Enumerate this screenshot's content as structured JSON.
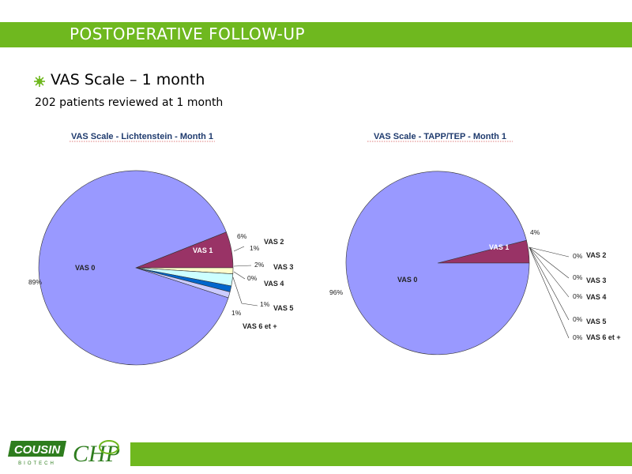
{
  "header": {
    "title": "POSTOPERATIVE FOLLOW-UP"
  },
  "bullet": {
    "text": "VAS Scale – 1 month",
    "icon": "star-burst-icon"
  },
  "subtitle": "202 patients reviewed at 1 month",
  "colors": {
    "accent": "#6fb81f",
    "vas0": "#9999ff",
    "vas1": "#993366",
    "vas2": "#ffffcc",
    "vas3": "#ccffff",
    "vas4": "#ff8080",
    "vas5": "#0066cc",
    "vas6": "#ccccff"
  },
  "chart_data": [
    {
      "type": "pie",
      "title": "VAS Scale - Lichtenstein - Month 1",
      "labels": [
        "VAS 0",
        "VAS 1",
        "VAS 2",
        "VAS 3",
        "VAS 4",
        "VAS 5",
        "VAS 6 et +"
      ],
      "values": [
        89,
        6,
        1,
        2,
        0,
        1,
        1
      ],
      "value_labels": [
        "89%",
        "6%",
        "1%",
        "2%",
        "0%",
        "1%",
        "1%"
      ]
    },
    {
      "type": "pie",
      "title": "VAS Scale - TAPP/TEP - Month 1",
      "labels": [
        "VAS 0",
        "VAS 1",
        "VAS 2",
        "VAS 3",
        "VAS 4",
        "VAS 5",
        "VAS 6 et +"
      ],
      "values": [
        96,
        4,
        0,
        0,
        0,
        0,
        0
      ],
      "value_labels": [
        "96%",
        "4%",
        "0%",
        "0%",
        "0%",
        "0%",
        "0%"
      ]
    }
  ],
  "footer": {
    "logo1_text": "COUSIN",
    "logo1_sub": "BIOTECH",
    "logo2_text": "CHP"
  }
}
